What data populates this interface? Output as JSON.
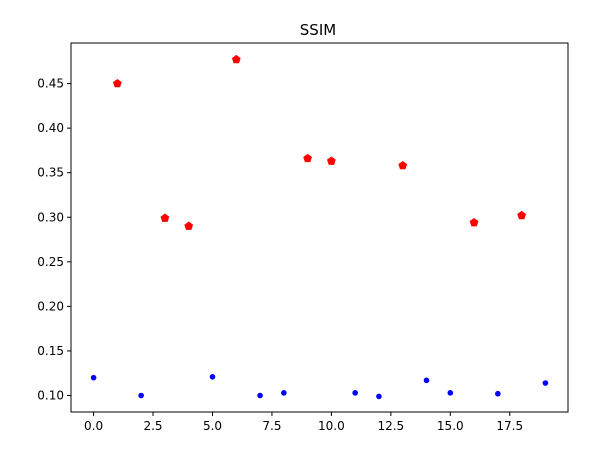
{
  "chart_data": {
    "type": "scatter",
    "title": "SSIM",
    "xlabel": "",
    "ylabel": "",
    "xlim": [
      -0.95,
      19.95
    ],
    "ylim": [
      0.0815,
      0.4955
    ],
    "xticks": [
      0.0,
      2.5,
      5.0,
      7.5,
      10.0,
      12.5,
      15.0,
      17.5
    ],
    "xtick_labels": [
      "0.0",
      "2.5",
      "5.0",
      "7.5",
      "10.0",
      "12.5",
      "15.0",
      "17.5"
    ],
    "yticks": [
      0.1,
      0.15,
      0.2,
      0.25,
      0.3,
      0.35,
      0.4,
      0.45
    ],
    "ytick_labels": [
      "0.10",
      "0.15",
      "0.20",
      "0.25",
      "0.30",
      "0.35",
      "0.40",
      "0.45"
    ],
    "grid": false,
    "series": [
      {
        "color": "#ff0000",
        "marker": "pentagon",
        "points": [
          {
            "x": 1,
            "y": 0.45
          },
          {
            "x": 3,
            "y": 0.299
          },
          {
            "x": 4,
            "y": 0.29
          },
          {
            "x": 6,
            "y": 0.477
          },
          {
            "x": 9,
            "y": 0.366
          },
          {
            "x": 10,
            "y": 0.363
          },
          {
            "x": 13,
            "y": 0.358
          },
          {
            "x": 16,
            "y": 0.294
          },
          {
            "x": 18,
            "y": 0.302
          }
        ]
      },
      {
        "color": "#0000ff",
        "marker": "circle",
        "points": [
          {
            "x": 0,
            "y": 0.12
          },
          {
            "x": 2,
            "y": 0.1
          },
          {
            "x": 5,
            "y": 0.121
          },
          {
            "x": 7,
            "y": 0.1
          },
          {
            "x": 8,
            "y": 0.103
          },
          {
            "x": 11,
            "y": 0.103
          },
          {
            "x": 12,
            "y": 0.099
          },
          {
            "x": 14,
            "y": 0.117
          },
          {
            "x": 15,
            "y": 0.103
          },
          {
            "x": 17,
            "y": 0.102
          },
          {
            "x": 19,
            "y": 0.114
          }
        ]
      }
    ]
  }
}
